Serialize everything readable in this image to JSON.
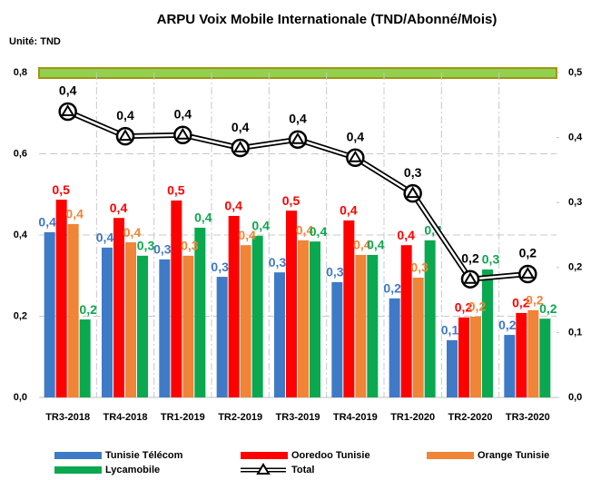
{
  "chart_data": {
    "type": "bar",
    "title": "ARPU Voix Mobile Internationale (TND/Abonné/Mois)",
    "unit_label": "Unité: TND",
    "categories": [
      "TR3-2018",
      "TR4-2018",
      "TR1-2019",
      "TR2-2019",
      "TR3-2019",
      "TR4-2019",
      "TR1-2020",
      "TR2-2020",
      "TR3-2020"
    ],
    "series": [
      {
        "name": "Tunisie Télécom",
        "color": "#3f7ac6",
        "values": [
          0.407,
          0.369,
          0.34,
          0.297,
          0.308,
          0.284,
          0.244,
          0.141,
          0.154
        ],
        "value_labels": [
          "0,4",
          "0,4",
          "0,3",
          "0,3",
          "0,3",
          "0,3",
          "0,2",
          "0,1",
          "0,2"
        ]
      },
      {
        "name": "Ooredoo Tunisie",
        "color": "#ff0000",
        "values": [
          0.487,
          0.442,
          0.485,
          0.447,
          0.46,
          0.436,
          0.375,
          0.197,
          0.208
        ],
        "value_labels": [
          "0,5",
          "0,4",
          "0,5",
          "0,4",
          "0,5",
          "0,4",
          "0,4",
          "0,2",
          "0,2"
        ]
      },
      {
        "name": "Orange Tunisie",
        "color": "#f08437",
        "values": [
          0.427,
          0.382,
          0.349,
          0.375,
          0.387,
          0.351,
          0.295,
          0.199,
          0.215
        ],
        "value_labels": [
          "0,4",
          "0,4",
          "0,3",
          "0,4",
          "0,4",
          "0,4",
          "0,3",
          "0,2",
          "0,2"
        ]
      },
      {
        "name": "Lycamobile",
        "color": "#0aa84f",
        "values": [
          0.192,
          0.349,
          0.418,
          0.398,
          0.384,
          0.351,
          0.387,
          0.315,
          0.194
        ],
        "value_labels": [
          "0,2",
          "0,3",
          "0,4",
          "0,4",
          "0,4",
          "0,4",
          "0,4",
          "0,3",
          "0,2"
        ]
      },
      {
        "name": "Total",
        "type": "line",
        "axis": "y2",
        "color": "#000000",
        "values": [
          0.44,
          0.402,
          0.404,
          0.384,
          0.397,
          0.369,
          0.314,
          0.182,
          0.19
        ],
        "value_labels": [
          "0,4",
          "0,4",
          "0,4",
          "0,4",
          "0,4",
          "0,4",
          "0,3",
          "0,2",
          "0,2"
        ]
      }
    ],
    "ylim": [
      0,
      0.8
    ],
    "yticks": [
      {
        "value": 0,
        "label": "0,0"
      },
      {
        "value": 0.2,
        "label": "0,2"
      },
      {
        "value": 0.4,
        "label": "0,4"
      },
      {
        "value": 0.6,
        "label": "0,6"
      },
      {
        "value": 0.8,
        "label": "0,8"
      }
    ],
    "y2lim": [
      0,
      0.5
    ],
    "y2ticks": [
      {
        "value": 0,
        "label": "0,0"
      },
      {
        "value": 0.1,
        "label": "0,1"
      },
      {
        "value": 0.2,
        "label": "0,2"
      },
      {
        "value": 0.3,
        "label": "0,3"
      },
      {
        "value": 0.4,
        "label": "0,4"
      },
      {
        "value": 0.5,
        "label": "0,5"
      }
    ],
    "grid": true
  }
}
